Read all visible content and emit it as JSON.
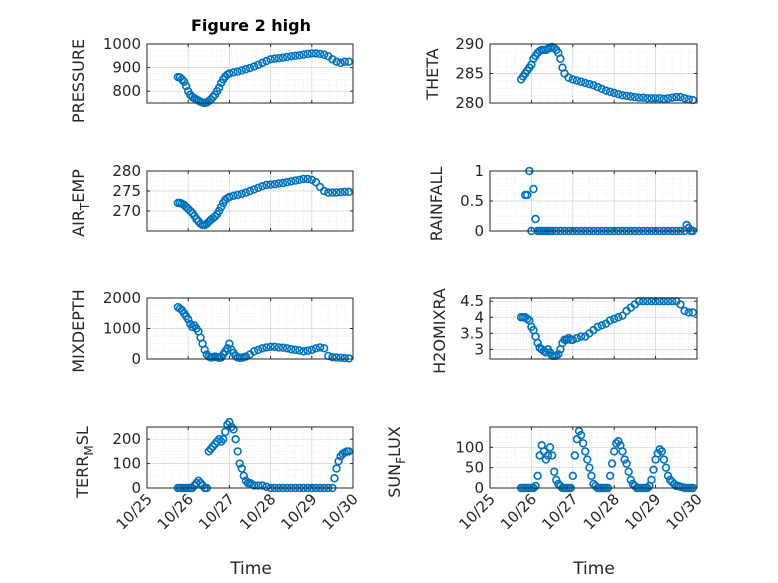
{
  "figure": {
    "title": "Figure 2 high",
    "accent_color": "#0072BD",
    "axis_color": "#262626"
  },
  "chart_data": [
    {
      "type": "scatter",
      "id": "pressure",
      "title": "Figure 2 high",
      "ylabel": "PRESSURE",
      "xlabel": "",
      "xlim": [
        25,
        30
      ],
      "ylim": [
        750,
        1000
      ],
      "yticks": [
        800,
        900,
        1000
      ],
      "ytick_labels": [
        "800",
        "900",
        "1000"
      ],
      "x": [
        25.75,
        25.8,
        25.85,
        25.9,
        25.95,
        26.0,
        26.05,
        26.1,
        26.15,
        26.2,
        26.25,
        26.3,
        26.35,
        26.4,
        26.45,
        26.5,
        26.55,
        26.6,
        26.65,
        26.7,
        26.75,
        26.8,
        26.85,
        26.9,
        26.95,
        27.0,
        27.1,
        27.2,
        27.3,
        27.4,
        27.5,
        27.6,
        27.7,
        27.8,
        27.9,
        28.0,
        28.1,
        28.2,
        28.3,
        28.4,
        28.5,
        28.6,
        28.7,
        28.8,
        28.9,
        29.0,
        29.1,
        29.2,
        29.3,
        29.4,
        29.5,
        29.6,
        29.7,
        29.8,
        29.9
      ],
      "y": [
        860,
        858,
        850,
        840,
        822,
        800,
        785,
        775,
        770,
        765,
        760,
        755,
        752,
        750,
        752,
        758,
        765,
        775,
        785,
        800,
        815,
        835,
        850,
        862,
        870,
        875,
        880,
        883,
        888,
        893,
        898,
        905,
        912,
        920,
        928,
        935,
        938,
        940,
        942,
        945,
        948,
        950,
        952,
        955,
        958,
        960,
        960,
        958,
        955,
        948,
        935,
        925,
        920,
        925,
        925
      ]
    },
    {
      "type": "scatter",
      "id": "theta",
      "ylabel": "THETA",
      "xlabel": "",
      "xlim": [
        25,
        30
      ],
      "ylim": [
        280,
        290
      ],
      "yticks": [
        280,
        285,
        290
      ],
      "ytick_labels": [
        "280",
        "285",
        "290"
      ],
      "x": [
        25.75,
        25.8,
        25.85,
        25.9,
        25.95,
        26.0,
        26.05,
        26.1,
        26.15,
        26.2,
        26.25,
        26.3,
        26.35,
        26.4,
        26.45,
        26.5,
        26.55,
        26.6,
        26.65,
        26.7,
        26.75,
        26.8,
        26.9,
        27.0,
        27.1,
        27.2,
        27.3,
        27.4,
        27.5,
        27.6,
        27.7,
        27.8,
        27.9,
        28.0,
        28.1,
        28.2,
        28.3,
        28.4,
        28.5,
        28.6,
        28.7,
        28.8,
        28.9,
        29.0,
        29.1,
        29.2,
        29.3,
        29.4,
        29.5,
        29.6,
        29.7,
        29.8,
        29.9
      ],
      "y": [
        284,
        284.5,
        285,
        285.5,
        286,
        286.5,
        287.5,
        288,
        288.5,
        288.8,
        289,
        289,
        289,
        289.2,
        289.3,
        289.5,
        289.3,
        289,
        288.5,
        287.5,
        286,
        285,
        284.3,
        284,
        283.8,
        283.6,
        283.4,
        283.2,
        283,
        282.7,
        282.4,
        282.1,
        281.9,
        281.7,
        281.5,
        281.3,
        281.2,
        281.1,
        281.0,
        280.9,
        280.9,
        280.8,
        280.8,
        280.8,
        280.8,
        280.7,
        280.8,
        280.9,
        281.0,
        281.0,
        280.8,
        280.6,
        280.5
      ]
    },
    {
      "type": "scatter",
      "id": "air_temp",
      "ylabel": "AIR_TEMP",
      "xlabel": "",
      "xlim": [
        25,
        30
      ],
      "ylim": [
        265,
        280
      ],
      "yticks": [
        270,
        275,
        280
      ],
      "ytick_labels": [
        "270",
        "275",
        "280"
      ],
      "x": [
        25.75,
        25.8,
        25.85,
        25.9,
        25.95,
        26.0,
        26.05,
        26.1,
        26.15,
        26.2,
        26.25,
        26.3,
        26.35,
        26.4,
        26.45,
        26.5,
        26.55,
        26.6,
        26.65,
        26.7,
        26.75,
        26.8,
        26.85,
        26.9,
        26.95,
        27.0,
        27.1,
        27.2,
        27.3,
        27.4,
        27.5,
        27.6,
        27.7,
        27.8,
        27.9,
        28.0,
        28.1,
        28.2,
        28.3,
        28.4,
        28.5,
        28.6,
        28.7,
        28.8,
        28.9,
        29.0,
        29.1,
        29.2,
        29.3,
        29.4,
        29.5,
        29.6,
        29.7,
        29.8,
        29.9
      ],
      "y": [
        272,
        272,
        271.8,
        271.5,
        271,
        270.5,
        270,
        269.5,
        268.8,
        268,
        267.4,
        266.8,
        266.5,
        266.5,
        266.8,
        267.3,
        267.8,
        268.2,
        268.6,
        269.2,
        270,
        271,
        272,
        272.8,
        273.2,
        273.5,
        273.8,
        274,
        274.3,
        274.6,
        275,
        275.4,
        275.8,
        276.2,
        276.5,
        276.6,
        276.7,
        276.9,
        277,
        277.2,
        277.4,
        277.6,
        277.8,
        278,
        278,
        277.8,
        277.2,
        276,
        275,
        274.6,
        274.6,
        274.6,
        274.7,
        274.8,
        274.8
      ]
    },
    {
      "type": "scatter",
      "id": "rainfall",
      "ylabel": "RAINFALL",
      "xlabel": "",
      "xlim": [
        25,
        30
      ],
      "ylim": [
        0,
        1
      ],
      "yticks": [
        0,
        0.5,
        1
      ],
      "ytick_labels": [
        "0",
        "0.5",
        "1"
      ],
      "x": [
        25.85,
        25.9,
        25.95,
        26.0,
        26.05,
        26.1,
        26.15,
        26.2,
        26.25,
        26.3,
        26.35,
        26.4,
        26.45,
        26.5,
        26.6,
        26.7,
        26.8,
        26.9,
        27.0,
        27.1,
        27.2,
        27.3,
        27.4,
        27.5,
        27.6,
        27.7,
        27.8,
        27.9,
        28.0,
        28.1,
        28.2,
        28.3,
        28.4,
        28.5,
        28.6,
        28.7,
        28.8,
        28.9,
        29.0,
        29.1,
        29.2,
        29.3,
        29.4,
        29.5,
        29.6,
        29.7,
        29.75,
        29.8,
        29.85,
        29.9
      ],
      "y": [
        0.6,
        0.6,
        1.0,
        0.0,
        0.7,
        0.2,
        0.0,
        0.0,
        0.0,
        0.0,
        0.0,
        0.0,
        0.0,
        0.0,
        0.0,
        0.0,
        0.0,
        0.0,
        0.0,
        0.0,
        0.0,
        0.0,
        0.0,
        0.0,
        0.0,
        0.0,
        0.0,
        0.0,
        0.0,
        0.0,
        0.0,
        0.0,
        0.0,
        0.0,
        0.0,
        0.0,
        0.0,
        0.0,
        0.0,
        0.0,
        0.0,
        0.0,
        0.0,
        0.0,
        0.0,
        0.0,
        0.1,
        0.05,
        0.0,
        0.0
      ]
    },
    {
      "type": "scatter",
      "id": "mixdepth",
      "ylabel": "MIXDEPTH",
      "xlabel": "",
      "xlim": [
        25,
        30
      ],
      "ylim": [
        0,
        2000
      ],
      "yticks": [
        0,
        1000,
        2000
      ],
      "ytick_labels": [
        "0",
        "1000",
        "2000"
      ],
      "x": [
        25.75,
        25.8,
        25.85,
        25.9,
        25.95,
        26.0,
        26.05,
        26.1,
        26.15,
        26.2,
        26.25,
        26.3,
        26.35,
        26.4,
        26.45,
        26.5,
        26.55,
        26.6,
        26.65,
        26.7,
        26.75,
        26.8,
        26.85,
        26.9,
        26.95,
        27.0,
        27.05,
        27.1,
        27.15,
        27.2,
        27.25,
        27.3,
        27.35,
        27.4,
        27.5,
        27.6,
        27.7,
        27.8,
        27.9,
        28.0,
        28.1,
        28.2,
        28.3,
        28.4,
        28.5,
        28.6,
        28.7,
        28.8,
        28.9,
        29.0,
        29.1,
        29.2,
        29.3,
        29.4,
        29.5,
        29.6,
        29.7,
        29.8,
        29.9
      ],
      "y": [
        1700,
        1650,
        1600,
        1500,
        1400,
        1300,
        1150,
        1050,
        1100,
        1000,
        900,
        700,
        500,
        300,
        150,
        80,
        50,
        60,
        80,
        60,
        40,
        50,
        150,
        250,
        350,
        500,
        300,
        200,
        100,
        50,
        40,
        40,
        60,
        80,
        150,
        250,
        300,
        350,
        380,
        400,
        400,
        380,
        370,
        350,
        320,
        300,
        280,
        250,
        270,
        300,
        350,
        380,
        350,
        100,
        60,
        50,
        40,
        30,
        20
      ]
    },
    {
      "type": "scatter",
      "id": "h2omixra",
      "ylabel": "H2OMIXRA",
      "xlabel": "",
      "xlim": [
        25,
        30
      ],
      "ylim": [
        2.7,
        4.6
      ],
      "yticks": [
        3,
        3.5,
        4,
        4.5
      ],
      "ytick_labels": [
        "3",
        "3.5",
        "4",
        "4.5"
      ],
      "x": [
        25.75,
        25.8,
        25.85,
        25.9,
        25.95,
        26.0,
        26.05,
        26.1,
        26.15,
        26.2,
        26.25,
        26.3,
        26.35,
        26.4,
        26.45,
        26.5,
        26.55,
        26.6,
        26.65,
        26.7,
        26.75,
        26.8,
        26.85,
        26.9,
        26.95,
        27.0,
        27.1,
        27.2,
        27.3,
        27.4,
        27.5,
        27.6,
        27.7,
        27.8,
        27.9,
        28.0,
        28.1,
        28.2,
        28.3,
        28.4,
        28.5,
        28.6,
        28.7,
        28.8,
        28.9,
        29.0,
        29.1,
        29.2,
        29.3,
        29.4,
        29.5,
        29.6,
        29.7,
        29.8,
        29.9
      ],
      "y": [
        4.0,
        4.0,
        4.0,
        3.95,
        3.9,
        3.7,
        3.6,
        3.4,
        3.2,
        3.05,
        3.0,
        2.95,
        2.9,
        3.0,
        2.9,
        2.8,
        2.8,
        2.8,
        2.85,
        3.0,
        3.2,
        3.3,
        3.3,
        3.35,
        3.3,
        3.3,
        3.35,
        3.4,
        3.4,
        3.5,
        3.6,
        3.7,
        3.75,
        3.8,
        3.9,
        3.95,
        4.0,
        4.05,
        4.2,
        4.3,
        4.4,
        4.5,
        4.5,
        4.5,
        4.5,
        4.5,
        4.5,
        4.5,
        4.5,
        4.5,
        4.5,
        4.4,
        4.2,
        4.15,
        4.15
      ]
    },
    {
      "type": "scatter",
      "id": "terr_msl",
      "ylabel": "TERR_MSL",
      "xlabel": "Time",
      "xlim": [
        25,
        30
      ],
      "ylim": [
        0,
        250
      ],
      "yticks": [
        0,
        100,
        200
      ],
      "ytick_labels": [
        "0",
        "100",
        "200"
      ],
      "xticks": [
        25,
        26,
        27,
        28,
        29,
        30
      ],
      "xtick_labels": [
        "10/25",
        "10/26",
        "10/27",
        "10/28",
        "10/29",
        "10/30"
      ],
      "x": [
        25.75,
        25.8,
        25.85,
        25.9,
        25.95,
        26.0,
        26.05,
        26.1,
        26.15,
        26.2,
        26.25,
        26.3,
        26.35,
        26.4,
        26.45,
        26.5,
        26.55,
        26.6,
        26.65,
        26.7,
        26.75,
        26.8,
        26.85,
        26.9,
        26.95,
        27.0,
        27.05,
        27.1,
        27.15,
        27.2,
        27.25,
        27.3,
        27.35,
        27.4,
        27.45,
        27.5,
        27.55,
        27.6,
        27.7,
        27.8,
        27.9,
        28.0,
        28.1,
        28.2,
        28.3,
        28.4,
        28.5,
        28.6,
        28.7,
        28.8,
        28.9,
        29.0,
        29.1,
        29.2,
        29.3,
        29.4,
        29.5,
        29.55,
        29.6,
        29.65,
        29.7,
        29.75,
        29.8,
        29.85,
        29.9
      ],
      "y": [
        0,
        0,
        0,
        0,
        0,
        0,
        0,
        0,
        10,
        20,
        30,
        20,
        10,
        0,
        0,
        150,
        160,
        170,
        180,
        190,
        200,
        190,
        200,
        230,
        260,
        270,
        250,
        240,
        200,
        150,
        100,
        80,
        50,
        30,
        20,
        20,
        15,
        10,
        10,
        10,
        5,
        0,
        0,
        0,
        0,
        0,
        0,
        0,
        0,
        0,
        0,
        0,
        0,
        0,
        0,
        0,
        0,
        40,
        80,
        110,
        130,
        140,
        145,
        150,
        150
      ]
    },
    {
      "type": "scatter",
      "id": "sun_flux",
      "ylabel": "SUN_FLUX",
      "xlabel": "Time",
      "xlim": [
        25,
        30
      ],
      "ylim": [
        0,
        150
      ],
      "yticks": [
        0,
        50,
        100
      ],
      "ytick_labels": [
        "0",
        "50",
        "100"
      ],
      "xticks": [
        25,
        26,
        27,
        28,
        29,
        30
      ],
      "xtick_labels": [
        "10/25",
        "10/26",
        "10/27",
        "10/28",
        "10/29",
        "10/30"
      ],
      "x": [
        25.75,
        25.8,
        25.85,
        25.9,
        25.95,
        26.0,
        26.05,
        26.1,
        26.15,
        26.2,
        26.25,
        26.3,
        26.35,
        26.4,
        26.45,
        26.5,
        26.55,
        26.6,
        26.65,
        26.7,
        26.75,
        26.8,
        26.85,
        26.9,
        26.95,
        27.0,
        27.05,
        27.1,
        27.15,
        27.2,
        27.25,
        27.3,
        27.35,
        27.4,
        27.45,
        27.5,
        27.55,
        27.6,
        27.65,
        27.7,
        27.75,
        27.8,
        27.85,
        27.9,
        27.95,
        28.0,
        28.05,
        28.1,
        28.15,
        28.2,
        28.25,
        28.3,
        28.35,
        28.4,
        28.45,
        28.5,
        28.55,
        28.6,
        28.65,
        28.7,
        28.75,
        28.8,
        28.85,
        28.9,
        28.95,
        29.0,
        29.05,
        29.1,
        29.15,
        29.2,
        29.25,
        29.3,
        29.35,
        29.4,
        29.45,
        29.5,
        29.55,
        29.6,
        29.65,
        29.7,
        29.75,
        29.8,
        29.85,
        29.9
      ],
      "y": [
        0,
        0,
        0,
        0,
        0,
        0,
        0,
        5,
        30,
        80,
        105,
        90,
        70,
        80,
        100,
        80,
        40,
        20,
        10,
        5,
        0,
        0,
        0,
        0,
        0,
        30,
        80,
        120,
        140,
        130,
        110,
        90,
        70,
        50,
        30,
        10,
        5,
        0,
        0,
        0,
        0,
        0,
        0,
        30,
        60,
        90,
        110,
        115,
        105,
        90,
        70,
        60,
        40,
        20,
        10,
        5,
        0,
        0,
        0,
        0,
        0,
        0,
        5,
        20,
        45,
        70,
        85,
        95,
        90,
        70,
        50,
        30,
        20,
        15,
        10,
        5,
        5,
        3,
        2,
        0,
        0,
        0,
        0,
        0
      ]
    }
  ]
}
